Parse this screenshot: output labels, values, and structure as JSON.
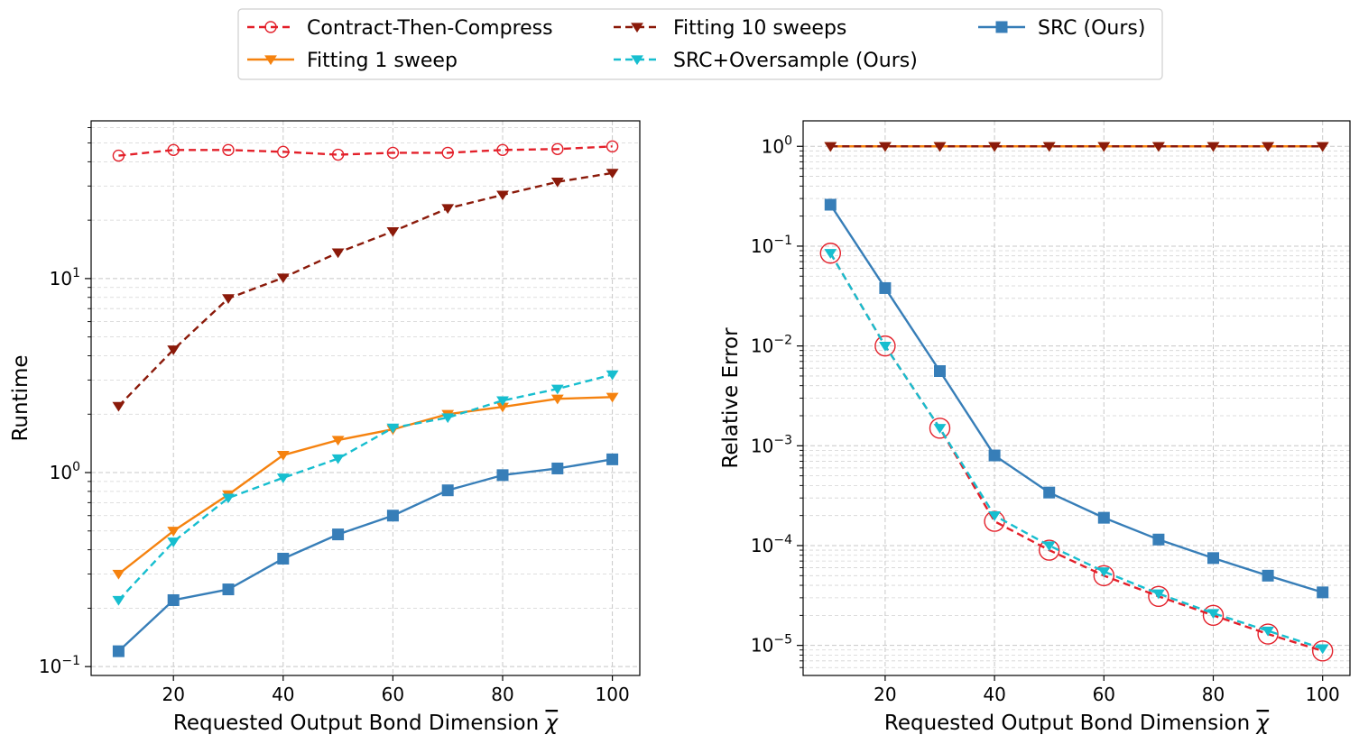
{
  "chart_data": [
    {
      "type": "line",
      "title": "",
      "xlabel": "Requested Output Bond Dimension",
      "xlabel_symbol": "χ",
      "ylabel": "Runtime",
      "yscale": "log",
      "xlim": [
        5,
        105
      ],
      "ylim": [
        0.09,
        65
      ],
      "grid": true,
      "x_ticks": [
        20,
        40,
        60,
        80,
        100
      ],
      "x_tick_labels": [
        "20",
        "40",
        "60",
        "80",
        "100"
      ],
      "y_ticks": [
        0.1,
        1,
        10
      ],
      "y_tick_labels": [
        {
          "base": "10",
          "exp": "−1"
        },
        {
          "base": "10",
          "exp": "0"
        },
        {
          "base": "10",
          "exp": "1"
        }
      ],
      "x": [
        10,
        20,
        30,
        40,
        50,
        60,
        70,
        80,
        90,
        100
      ],
      "series": [
        {
          "name": "Contract-Then-Compress",
          "key": "ctc",
          "values": [
            43,
            46,
            46,
            45,
            43.5,
            44.5,
            44.5,
            46,
            46.5,
            48
          ]
        },
        {
          "name": "Fitting 10 sweeps",
          "key": "fit10",
          "values": [
            2.2,
            4.3,
            7.9,
            10.1,
            13.6,
            17.5,
            23,
            27,
            31.5,
            35
          ]
        },
        {
          "name": "Fitting 1 sweep",
          "key": "fit1",
          "values": [
            0.3,
            0.5,
            0.77,
            1.23,
            1.47,
            1.67,
            2.0,
            2.18,
            2.4,
            2.45
          ]
        },
        {
          "name": "SRC+Oversample (Ours)",
          "key": "srco",
          "values": [
            0.22,
            0.44,
            0.74,
            0.94,
            1.18,
            1.7,
            1.92,
            2.35,
            2.7,
            3.2
          ]
        },
        {
          "name": "SRC (Ours)",
          "key": "src",
          "values": [
            0.12,
            0.22,
            0.25,
            0.36,
            0.48,
            0.6,
            0.81,
            0.97,
            1.05,
            1.17
          ]
        }
      ]
    },
    {
      "type": "line",
      "title": "",
      "xlabel": "Requested Output Bond Dimension",
      "xlabel_symbol": "χ",
      "ylabel": "Relative Error",
      "yscale": "log",
      "xlim": [
        5,
        105
      ],
      "ylim": [
        5e-06,
        1.8
      ],
      "grid": true,
      "x_ticks": [
        20,
        40,
        60,
        80,
        100
      ],
      "x_tick_labels": [
        "20",
        "40",
        "60",
        "80",
        "100"
      ],
      "y_ticks": [
        1e-05,
        0.0001,
        0.001,
        0.01,
        0.1,
        1
      ],
      "y_tick_labels": [
        {
          "base": "10",
          "exp": "−5"
        },
        {
          "base": "10",
          "exp": "−4"
        },
        {
          "base": "10",
          "exp": "−3"
        },
        {
          "base": "10",
          "exp": "−2"
        },
        {
          "base": "10",
          "exp": "−1"
        },
        {
          "base": "10",
          "exp": "0"
        }
      ],
      "x": [
        10,
        20,
        30,
        40,
        50,
        60,
        70,
        80,
        90,
        100
      ],
      "series": [
        {
          "name": "Fitting 1 sweep",
          "key": "fit1",
          "values": [
            1,
            1,
            1,
            1,
            1,
            1,
            1,
            1,
            1,
            1
          ]
        },
        {
          "name": "Fitting 10 sweeps",
          "key": "fit10",
          "values": [
            1,
            1,
            1,
            1,
            1,
            1,
            1,
            1,
            1,
            1
          ]
        },
        {
          "name": "SRC (Ours)",
          "key": "src",
          "values": [
            0.26,
            0.038,
            0.0056,
            0.0008,
            0.00034,
            0.00019,
            0.000115,
            7.5e-05,
            5e-05,
            3.4e-05
          ]
        },
        {
          "name": "Contract-Then-Compress",
          "key": "ctc",
          "values": [
            0.085,
            0.01,
            0.0015,
            0.000175,
            9e-05,
            5e-05,
            3.1e-05,
            2e-05,
            1.3e-05,
            8.8e-06
          ]
        },
        {
          "name": "SRC+Oversample (Ours)",
          "key": "srco",
          "values": [
            0.085,
            0.01,
            0.0015,
            0.0002,
            0.0001,
            5.5e-05,
            3.3e-05,
            2.1e-05,
            1.4e-05,
            9.3e-06
          ]
        }
      ]
    }
  ],
  "legend": {
    "placement": "top-center",
    "entries": [
      {
        "label": "Contract-Then-Compress",
        "key": "ctc"
      },
      {
        "label": "Fitting 10 sweeps",
        "key": "fit10"
      },
      {
        "label": "SRC (Ours)",
        "key": "src"
      },
      {
        "label": "Fitting 1 sweep",
        "key": "fit1"
      },
      {
        "label": "SRC+Oversample (Ours)",
        "key": "srco"
      }
    ]
  },
  "styles": {
    "ctc": {
      "color": "#e3202a",
      "dash": "8,5",
      "marker": "circle-open"
    },
    "fit10": {
      "color": "#8b1a0a",
      "dash": "8,5",
      "marker": "triangle-down"
    },
    "fit1": {
      "color": "#f5820f",
      "dash": "",
      "marker": "triangle-down"
    },
    "srco": {
      "color": "#17becf",
      "dash": "8,5",
      "marker": "triangle-down"
    },
    "src": {
      "color": "#377eb8",
      "dash": "",
      "marker": "square"
    }
  }
}
